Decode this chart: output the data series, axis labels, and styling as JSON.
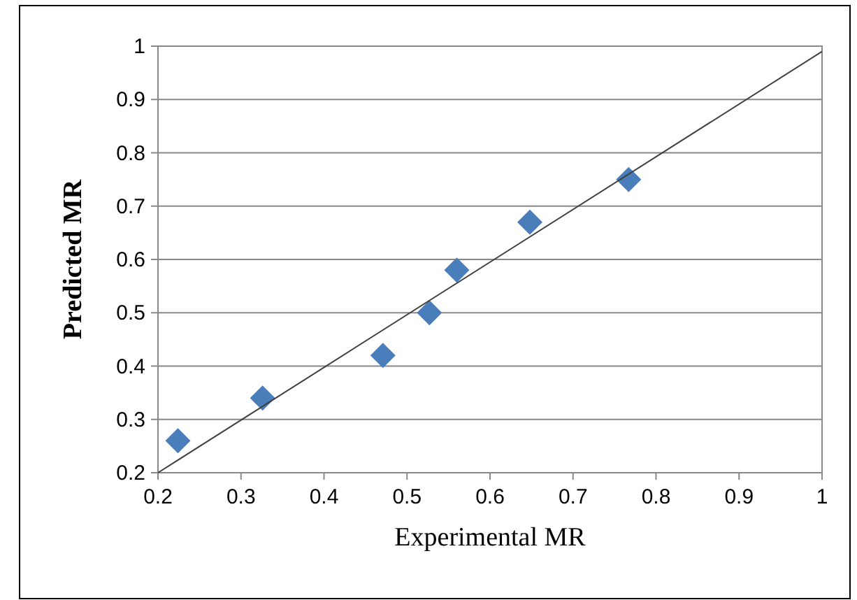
{
  "chart_data": {
    "type": "scatter",
    "xlabel": "Experimental MR",
    "ylabel": "Predicted MR",
    "xlim": [
      0.2,
      1
    ],
    "ylim": [
      0.2,
      1
    ],
    "xticks": [
      0.2,
      0.3,
      0.4,
      0.5,
      0.6,
      0.7,
      0.8,
      0.9,
      1
    ],
    "yticks": [
      0.2,
      0.3,
      0.4,
      0.5,
      0.6,
      0.7,
      0.8,
      0.9,
      1
    ],
    "grid": "y",
    "series": [
      {
        "color": "#4a7ebb",
        "marker": "diamond",
        "x": [
          0.224,
          0.326,
          0.471,
          0.527,
          0.56,
          0.648,
          0.767
        ],
        "values": [
          0.26,
          0.34,
          0.42,
          0.5,
          0.58,
          0.67,
          0.75
        ]
      },
      {
        "type": "line",
        "color": "#404040",
        "marker": "none",
        "line_style": "solid",
        "x": [
          0.2,
          1
        ],
        "values": [
          0.2,
          0.99
        ]
      }
    ]
  }
}
